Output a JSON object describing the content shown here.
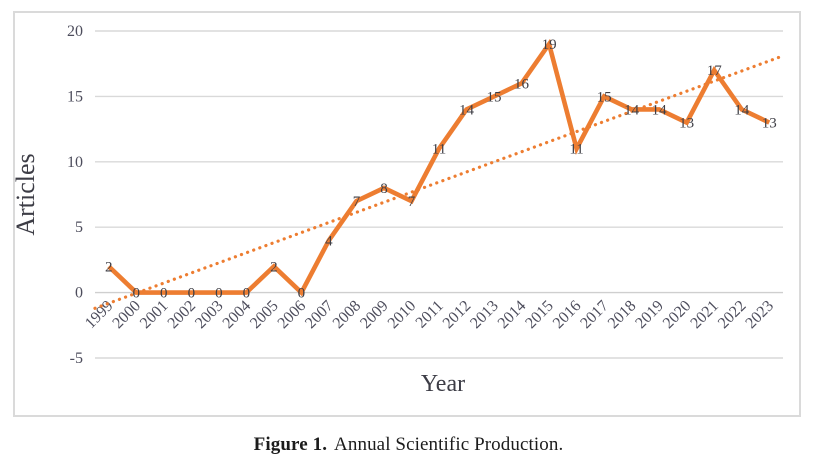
{
  "figure": {
    "caption_label": "Figure 1.",
    "caption_text": "Annual Scientific Production."
  },
  "chart_data": {
    "type": "line",
    "title": "",
    "xlabel": "Year",
    "ylabel": "Articles",
    "categories": [
      "1999",
      "2000",
      "2001",
      "2002",
      "2003",
      "2004",
      "2005",
      "2006",
      "2007",
      "2008",
      "2009",
      "2010",
      "2011",
      "2012",
      "2013",
      "2014",
      "2015",
      "2016",
      "2017",
      "2018",
      "2019",
      "2020",
      "2021",
      "2022",
      "2023"
    ],
    "series": [
      {
        "name": "Articles",
        "values": [
          2,
          0,
          0,
          0,
          0,
          0,
          2,
          0,
          4,
          7,
          8,
          7,
          11,
          14,
          15,
          16,
          19,
          11,
          15,
          14,
          14,
          13,
          17,
          14,
          13
        ],
        "color": "#ed7d31"
      }
    ],
    "data_labels": true,
    "data_label_position": "center",
    "y_ticks": [
      20,
      15,
      10,
      5,
      0,
      -5
    ],
    "ylim": [
      -5,
      20
    ],
    "grid": true,
    "legend": "none",
    "trendline": {
      "type": "linear",
      "style": "dotted",
      "color": "#ed7d31",
      "start_value": -1.2,
      "end_value": 18.1
    },
    "colors": {
      "gridline": "#d9d9d9",
      "zero_gridline": "#cfcfcf",
      "tick_text": "#4d4d5c",
      "axis_title_text": "#3d3d46",
      "data_label_text": "#3f3f46",
      "frame_border": "#dadada"
    }
  }
}
